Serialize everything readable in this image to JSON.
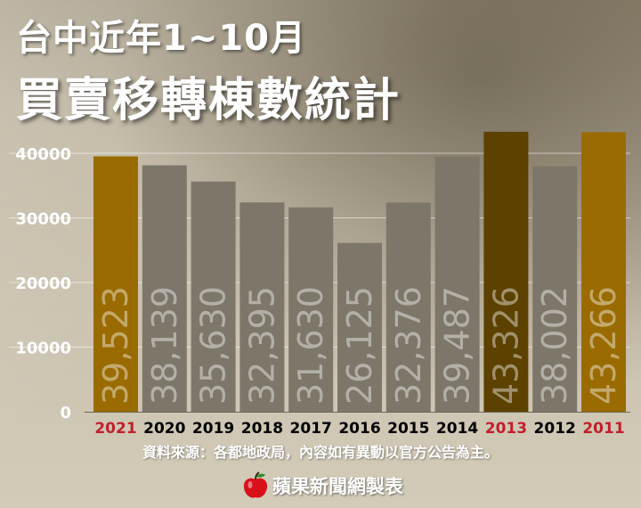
{
  "title": {
    "line1": "台中近年1~10月",
    "line2": "買賣移轉棟數統計"
  },
  "colors": {
    "highlight_bar": "#9a6b00",
    "peak_bar": "#5c4100",
    "default_bar": "#7d7769",
    "highlight_year_text": "#c0202c",
    "default_year_text": "#000000"
  },
  "chart_data": {
    "type": "bar",
    "categories": [
      "2021",
      "2020",
      "2019",
      "2018",
      "2017",
      "2016",
      "2015",
      "2014",
      "2013",
      "2012",
      "2011"
    ],
    "values": [
      39523,
      38139,
      35630,
      32395,
      31630,
      26125,
      32376,
      39487,
      43326,
      38002,
      43266
    ],
    "value_labels": [
      "39,523",
      "38,139",
      "35,630",
      "32,395",
      "31,630",
      "26,125",
      "32,376",
      "39,487",
      "43,326",
      "38,002",
      "43,266"
    ],
    "bar_styles": [
      "highlight",
      "default",
      "default",
      "default",
      "default",
      "default",
      "default",
      "default",
      "peak",
      "default",
      "highlight"
    ],
    "highlighted_categories": [
      "2021",
      "2013",
      "2011"
    ],
    "yticks": [
      "0",
      "10000",
      "20000",
      "30000",
      "40000"
    ],
    "ylim": [
      0,
      40000
    ],
    "grid": true
  },
  "source_note": "資料來源：各都地政局，內容如有異動以官方公告為主。",
  "brand": {
    "text": "蘋果新聞網製表",
    "icon": "apple-icon"
  }
}
